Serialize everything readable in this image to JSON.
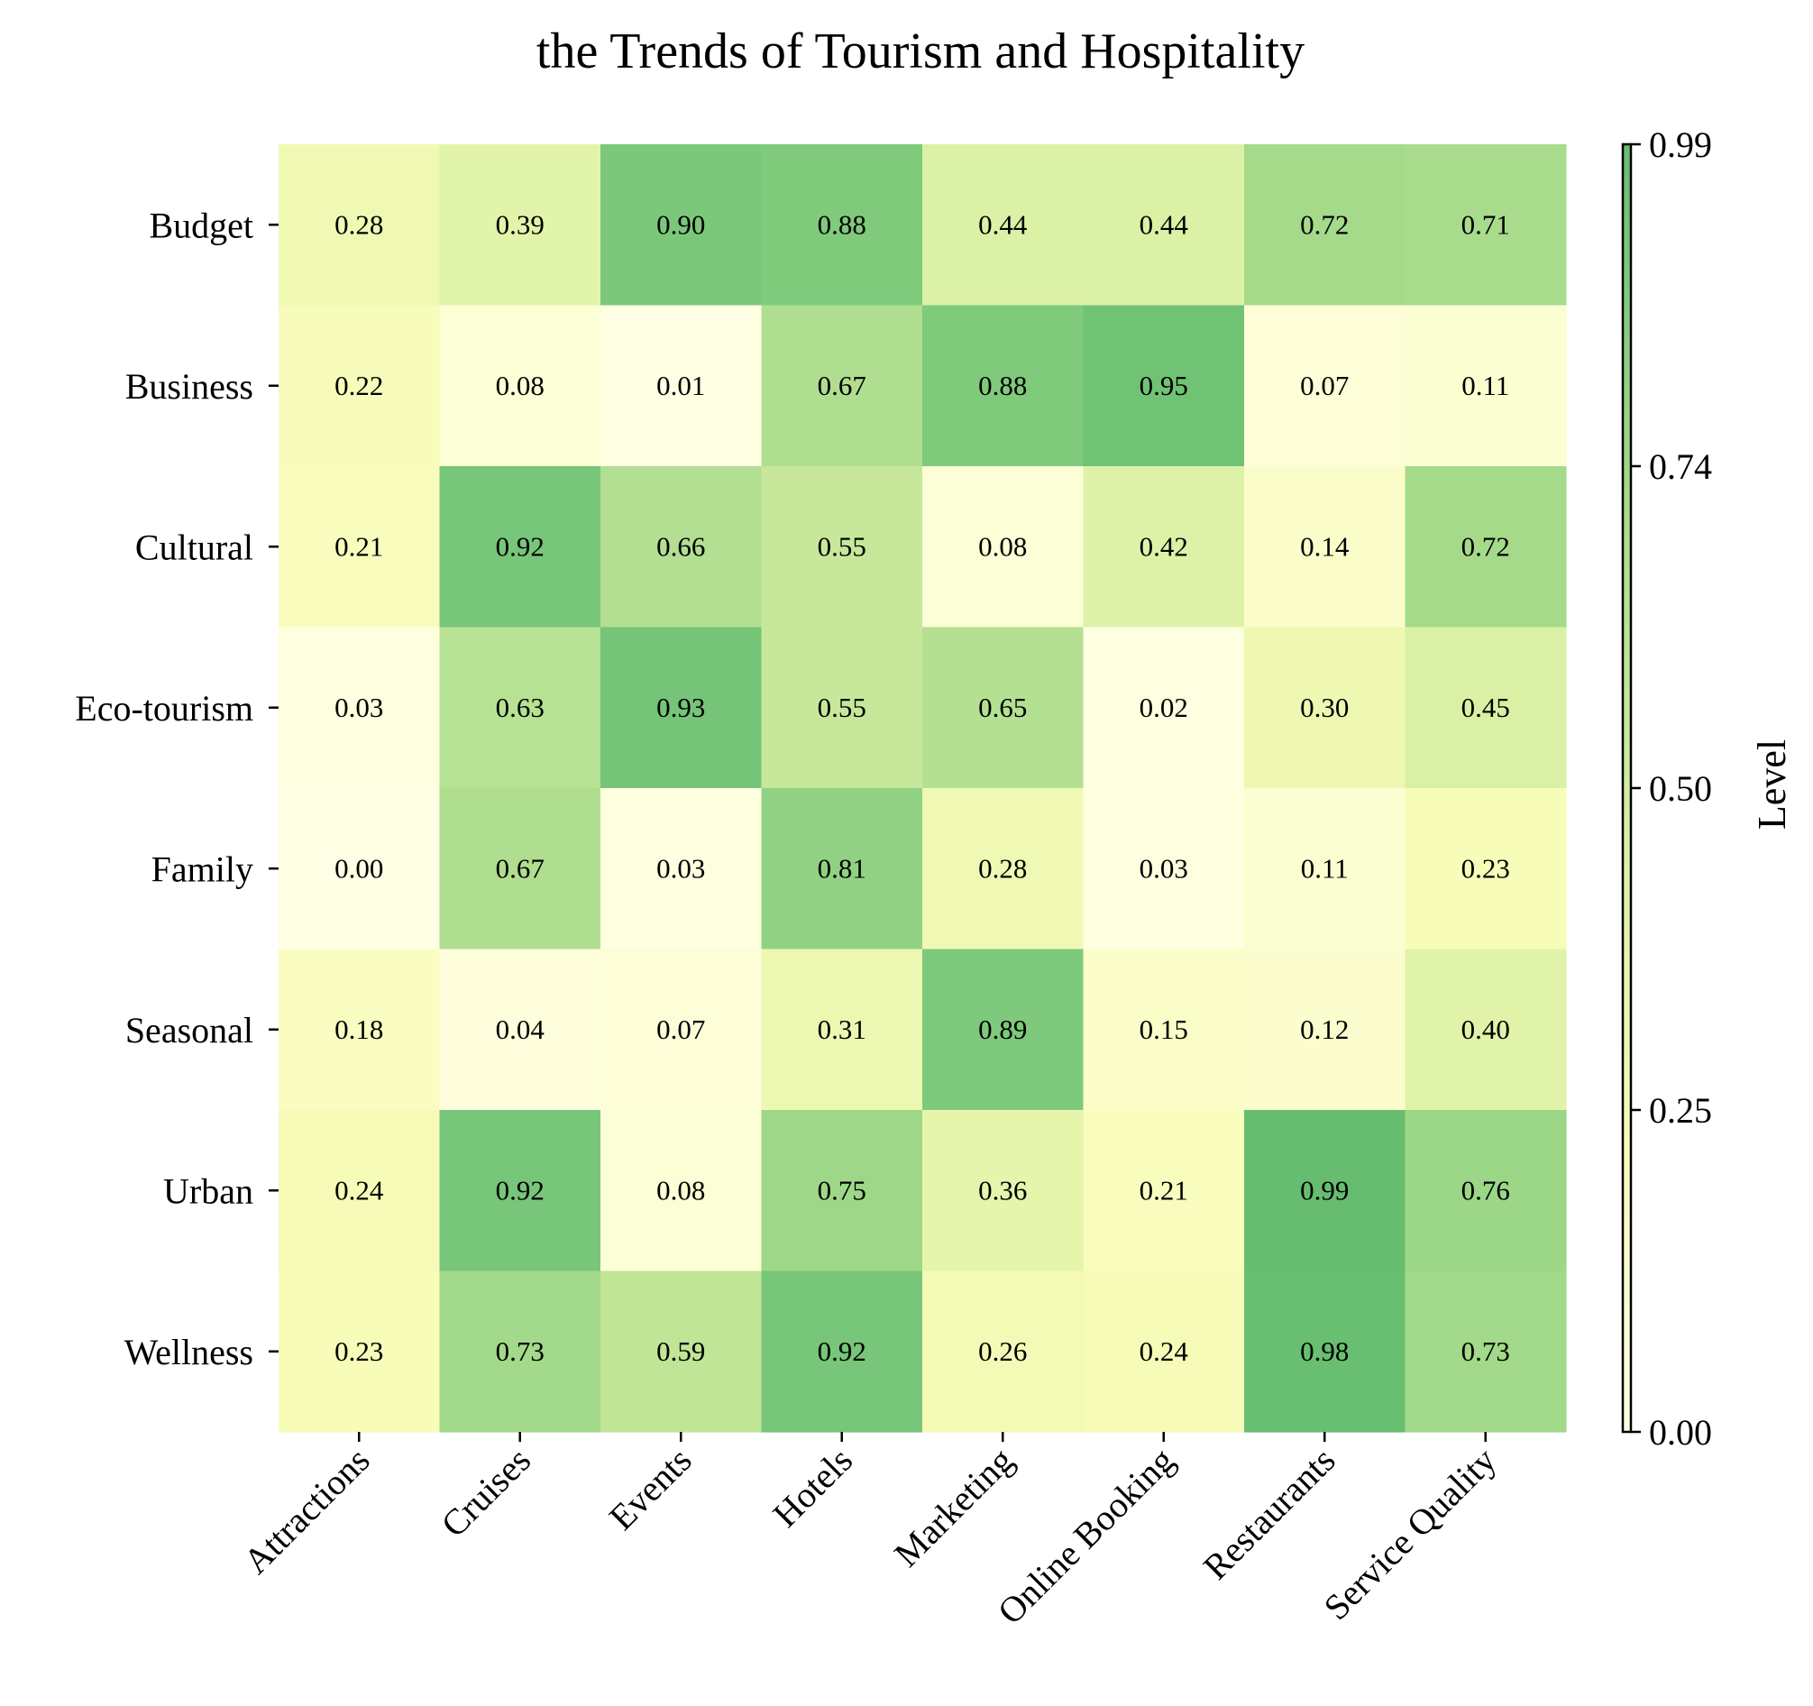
{
  "chart_data": {
    "type": "heatmap",
    "title": "the Trends of Tourism and Hospitality",
    "rows": [
      "Budget",
      "Business",
      "Cultural",
      "Eco-tourism",
      "Family",
      "Seasonal",
      "Urban",
      "Wellness"
    ],
    "columns": [
      "Attractions",
      "Cruises",
      "Events",
      "Hotels",
      "Marketing",
      "Online Booking",
      "Restaurants",
      "Service Quality"
    ],
    "values": [
      [
        0.28,
        0.39,
        0.9,
        0.88,
        0.44,
        0.44,
        0.72,
        0.71
      ],
      [
        0.22,
        0.08,
        0.01,
        0.67,
        0.88,
        0.95,
        0.07,
        0.11
      ],
      [
        0.21,
        0.92,
        0.66,
        0.55,
        0.08,
        0.42,
        0.14,
        0.72
      ],
      [
        0.03,
        0.63,
        0.93,
        0.55,
        0.65,
        0.02,
        0.3,
        0.45
      ],
      [
        0.0,
        0.67,
        0.03,
        0.81,
        0.28,
        0.03,
        0.11,
        0.23
      ],
      [
        0.18,
        0.04,
        0.07,
        0.31,
        0.89,
        0.15,
        0.12,
        0.4
      ],
      [
        0.24,
        0.92,
        0.08,
        0.75,
        0.36,
        0.21,
        0.99,
        0.76
      ],
      [
        0.23,
        0.73,
        0.59,
        0.92,
        0.26,
        0.24,
        0.98,
        0.73
      ]
    ],
    "value_format": "0.00",
    "colorbar": {
      "label": "Level",
      "range": [
        0.0,
        0.99
      ],
      "ticks": [
        "0.00",
        "0.25",
        "0.50",
        "0.74",
        "0.99"
      ],
      "tick_values": [
        0.0,
        0.2475,
        0.495,
        0.7425,
        0.99
      ]
    },
    "colormap": [
      "#ffffe5",
      "#f7fcb9",
      "#d9f0a3",
      "#addd8e",
      "#78c679",
      "#41ab5d",
      "#238443"
    ],
    "colormap_max_fraction": 0.72
  }
}
